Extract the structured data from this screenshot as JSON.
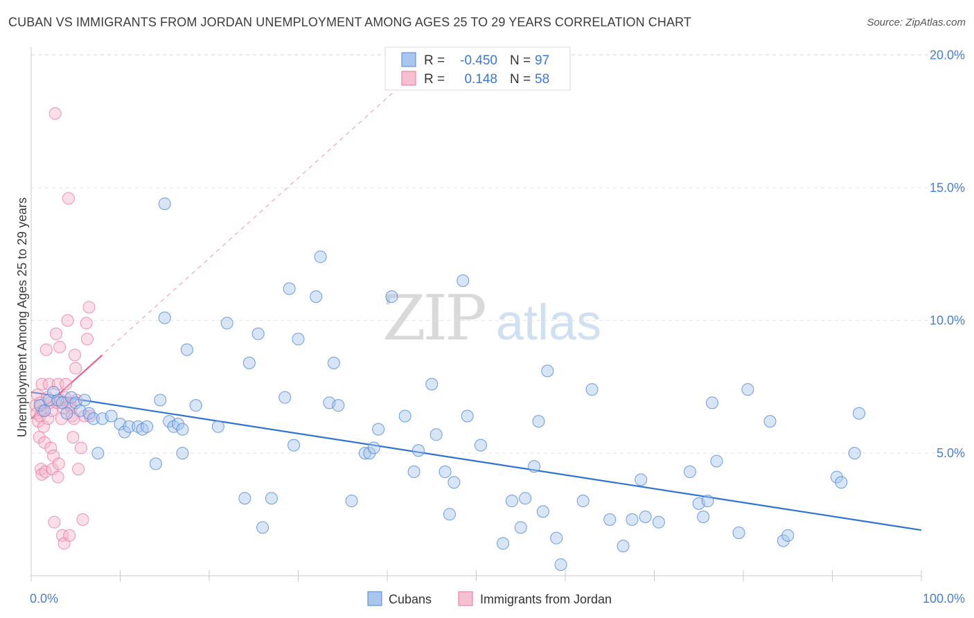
{
  "title": "CUBAN VS IMMIGRANTS FROM JORDAN UNEMPLOYMENT AMONG AGES 25 TO 29 YEARS CORRELATION CHART",
  "source": "Source: ZipAtlas.com",
  "watermark": {
    "zip": "ZIP",
    "atlas": "atlas"
  },
  "colors": {
    "blue": "#4a86d8",
    "blue_fill": "#a9c6ee",
    "pink": "#e8739a",
    "pink_fill": "#f4b5cb",
    "tick": "#4a7fd0"
  },
  "legend": {
    "row1": {
      "r_label": "R =",
      "r_value": "-0.450",
      "n_label": "N =",
      "n_value": "97"
    },
    "row2": {
      "r_label": "R =",
      "r_value": "0.148",
      "n_label": "N =",
      "n_value": "58"
    }
  },
  "bottom_legend": {
    "cubans": "Cubans",
    "jordan": "Immigrants from Jordan"
  },
  "chart_data": {
    "type": "scatter",
    "title": "CUBAN VS IMMIGRANTS FROM JORDAN UNEMPLOYMENT AMONG AGES 25 TO 29 YEARS CORRELATION CHART",
    "xlabel": "",
    "ylabel": "Unemployment Among Ages 25 to 29 years",
    "xlim": [
      0,
      100
    ],
    "ylim": [
      0,
      20.5
    ],
    "x_ticks": [
      "0.0%",
      "100.0%"
    ],
    "y_ticks": [
      {
        "value": 5,
        "label": "5.0%"
      },
      {
        "value": 10,
        "label": "10.0%"
      },
      {
        "value": 15,
        "label": "15.0%"
      },
      {
        "value": 20,
        "label": "20.0%"
      }
    ],
    "grid": "horizontal dashed",
    "legend_position": "top-center",
    "series": [
      {
        "name": "Cubans",
        "r": -0.45,
        "n": 97,
        "trend": {
          "x": [
            0,
            100
          ],
          "y": [
            7.3,
            2.1
          ]
        },
        "points": [
          [
            1.0,
            6.8
          ],
          [
            1.5,
            6.6
          ],
          [
            2.0,
            7.0
          ],
          [
            2.5,
            7.3
          ],
          [
            3.0,
            7.0
          ],
          [
            3.5,
            6.9
          ],
          [
            4.0,
            6.5
          ],
          [
            4.5,
            7.1
          ],
          [
            5.0,
            6.9
          ],
          [
            5.5,
            6.6
          ],
          [
            6.0,
            7.0
          ],
          [
            6.5,
            6.5
          ],
          [
            7.0,
            6.3
          ],
          [
            7.5,
            5.0
          ],
          [
            8.0,
            6.3
          ],
          [
            9.0,
            6.4
          ],
          [
            10.0,
            6.1
          ],
          [
            10.5,
            5.8
          ],
          [
            11.0,
            6.0
          ],
          [
            12.0,
            6.0
          ],
          [
            12.5,
            5.9
          ],
          [
            13.0,
            6.0
          ],
          [
            14.0,
            4.6
          ],
          [
            14.5,
            7.0
          ],
          [
            15.0,
            10.1
          ],
          [
            15.5,
            6.2
          ],
          [
            16.0,
            6.0
          ],
          [
            16.5,
            6.1
          ],
          [
            17.0,
            5.0
          ],
          [
            17.5,
            8.9
          ],
          [
            18.5,
            6.8
          ],
          [
            15.0,
            14.4
          ],
          [
            17.0,
            5.9
          ],
          [
            21.0,
            6.0
          ],
          [
            22.0,
            9.9
          ],
          [
            24.0,
            3.3
          ],
          [
            24.5,
            8.4
          ],
          [
            25.5,
            9.5
          ],
          [
            26.0,
            2.2
          ],
          [
            27.0,
            3.3
          ],
          [
            28.5,
            7.1
          ],
          [
            29.0,
            11.2
          ],
          [
            29.5,
            5.3
          ],
          [
            30.0,
            9.3
          ],
          [
            32.0,
            10.9
          ],
          [
            32.5,
            12.4
          ],
          [
            33.5,
            6.9
          ],
          [
            34.0,
            8.4
          ],
          [
            34.5,
            6.8
          ],
          [
            36.0,
            3.2
          ],
          [
            37.5,
            5.0
          ],
          [
            38.0,
            5.0
          ],
          [
            38.5,
            5.2
          ],
          [
            39.0,
            5.9
          ],
          [
            40.5,
            10.9
          ],
          [
            42.0,
            6.4
          ],
          [
            43.0,
            4.3
          ],
          [
            43.5,
            5.1
          ],
          [
            45.0,
            7.6
          ],
          [
            45.5,
            5.7
          ],
          [
            46.5,
            4.3
          ],
          [
            47.0,
            2.7
          ],
          [
            47.5,
            3.9
          ],
          [
            48.5,
            11.5
          ],
          [
            49.0,
            6.4
          ],
          [
            50.5,
            5.3
          ],
          [
            53.0,
            1.6
          ],
          [
            54.0,
            3.2
          ],
          [
            55.0,
            2.2
          ],
          [
            55.5,
            3.3
          ],
          [
            56.5,
            4.5
          ],
          [
            57.0,
            6.2
          ],
          [
            57.5,
            2.8
          ],
          [
            58.0,
            8.1
          ],
          [
            59.0,
            1.8
          ],
          [
            59.5,
            0.8
          ],
          [
            62.0,
            3.2
          ],
          [
            63.0,
            7.4
          ],
          [
            65.0,
            2.5
          ],
          [
            66.5,
            1.5
          ],
          [
            67.5,
            2.5
          ],
          [
            68.5,
            4.0
          ],
          [
            69.0,
            2.6
          ],
          [
            70.5,
            2.4
          ],
          [
            74.0,
            4.3
          ],
          [
            75.0,
            3.1
          ],
          [
            75.5,
            2.6
          ],
          [
            76.0,
            3.2
          ],
          [
            76.5,
            6.9
          ],
          [
            77.0,
            4.7
          ],
          [
            79.5,
            2.0
          ],
          [
            80.5,
            7.4
          ],
          [
            83.0,
            6.2
          ],
          [
            84.5,
            1.7
          ],
          [
            85.0,
            1.9
          ],
          [
            90.5,
            4.1
          ],
          [
            91.0,
            3.9
          ],
          [
            92.5,
            5.0
          ],
          [
            93.0,
            6.5
          ]
        ]
      },
      {
        "name": "Immigrants from Jordan",
        "r": 0.148,
        "n": 58,
        "trend": {
          "x": [
            0,
            8
          ],
          "y": [
            6.3,
            8.7
          ]
        },
        "trend_extended": {
          "x": [
            0,
            42
          ],
          "y": [
            6.3,
            19.0
          ]
        },
        "points": [
          [
            0.5,
            6.8
          ],
          [
            0.6,
            6.5
          ],
          [
            0.7,
            7.2
          ],
          [
            0.8,
            6.2
          ],
          [
            0.9,
            5.6
          ],
          [
            1.0,
            6.9
          ],
          [
            1.0,
            6.4
          ],
          [
            1.1,
            4.4
          ],
          [
            1.2,
            4.2
          ],
          [
            1.2,
            7.6
          ],
          [
            1.3,
            6.6
          ],
          [
            1.4,
            6.0
          ],
          [
            1.5,
            5.4
          ],
          [
            1.6,
            4.3
          ],
          [
            1.7,
            8.9
          ],
          [
            1.8,
            7.1
          ],
          [
            1.9,
            6.3
          ],
          [
            2.0,
            7.6
          ],
          [
            2.1,
            6.9
          ],
          [
            2.2,
            5.2
          ],
          [
            2.3,
            6.6
          ],
          [
            2.4,
            4.4
          ],
          [
            2.5,
            4.9
          ],
          [
            2.6,
            2.4
          ],
          [
            2.7,
            17.8
          ],
          [
            2.8,
            9.5
          ],
          [
            2.9,
            6.9
          ],
          [
            3.0,
            7.6
          ],
          [
            3.0,
            4.1
          ],
          [
            3.1,
            4.6
          ],
          [
            3.2,
            9.0
          ],
          [
            3.3,
            7.0
          ],
          [
            3.4,
            6.3
          ],
          [
            3.5,
            1.9
          ],
          [
            3.6,
            6.7
          ],
          [
            3.7,
            1.6
          ],
          [
            3.8,
            7.1
          ],
          [
            3.9,
            7.6
          ],
          [
            4.0,
            6.9
          ],
          [
            4.1,
            10.0
          ],
          [
            4.2,
            14.6
          ],
          [
            4.3,
            1.9
          ],
          [
            4.4,
            6.8
          ],
          [
            4.5,
            6.7
          ],
          [
            4.6,
            6.4
          ],
          [
            4.7,
            5.6
          ],
          [
            4.8,
            6.3
          ],
          [
            4.9,
            8.7
          ],
          [
            5.0,
            8.2
          ],
          [
            5.1,
            7.0
          ],
          [
            5.3,
            4.4
          ],
          [
            5.6,
            5.2
          ],
          [
            5.8,
            2.5
          ],
          [
            6.0,
            6.4
          ],
          [
            6.2,
            9.9
          ],
          [
            6.3,
            9.3
          ],
          [
            6.5,
            10.5
          ],
          [
            6.6,
            6.4
          ]
        ]
      }
    ]
  }
}
